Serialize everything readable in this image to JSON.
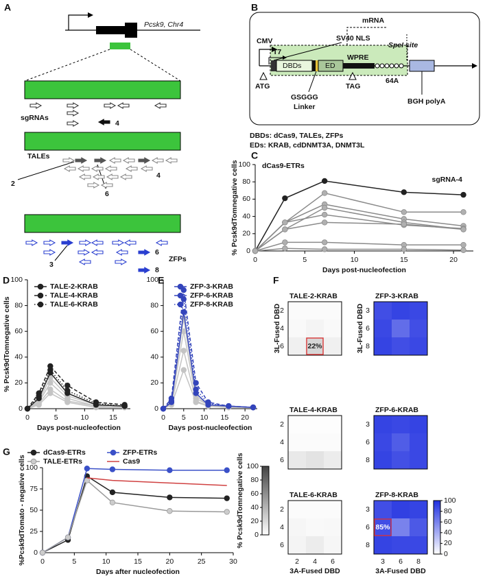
{
  "panel_labels": [
    "A",
    "B",
    "C",
    "D",
    "E",
    "F",
    "G"
  ],
  "diagram_a": {
    "gene_label": "Pcsk9, Chr4",
    "sgrnas_label": "sgRNAs",
    "sgrna_callout": "4",
    "tales_label": "TALEs",
    "tale_callouts": [
      "2",
      "4",
      "6"
    ],
    "zfps_label": "ZFPs",
    "zfp_callouts": [
      "3",
      "6",
      "8"
    ]
  },
  "diagram_b": {
    "cmv": "CMV",
    "t7": "T7",
    "sv40": "SV40 NLS",
    "mrna": "mRNA",
    "spei": "SpeI site",
    "dbds": "DBDs",
    "ed": "ED",
    "wpre": "WPRE",
    "polya": "64A",
    "atg": "ATG",
    "tag": "TAG",
    "linker": [
      "GSGGG",
      "Linker"
    ],
    "bgh": "BGH polyA",
    "notes": [
      "DBDs: dCas9, TALEs, ZFPs",
      "EDs: KRAB, cdDNMT3A, DNMT3L"
    ]
  },
  "chart_data": [
    {
      "type": "line",
      "annotation": "dCas9-ETRs",
      "legend": "direct",
      "xlabel": "Days post-nucleofection",
      "ylabel": "% Pcsk9dTomnegative cells",
      "x": [
        0,
        3,
        7,
        15,
        21
      ],
      "xlim": [
        0,
        22
      ],
      "xticks": [
        0,
        5,
        10,
        15,
        20
      ],
      "ylim": [
        0,
        100
      ],
      "yticks": [
        0,
        20,
        40,
        60,
        80,
        100
      ],
      "series": [
        {
          "name": "sgRNA-4",
          "color": "#222222",
          "values": [
            0,
            61,
            81,
            68,
            65
          ]
        },
        {
          "color": "#8a8a8a",
          "marker_fill": "#b0b0b0",
          "values": [
            0,
            33,
            67,
            45,
            45
          ]
        },
        {
          "color": "#8a8a8a",
          "marker_fill": "#b0b0b0",
          "values": [
            0,
            33,
            54,
            37,
            29
          ]
        },
        {
          "color": "#8a8a8a",
          "marker_fill": "#b0b0b0",
          "values": [
            0,
            25,
            50,
            33,
            25
          ]
        },
        {
          "color": "#8a8a8a",
          "marker_fill": "#b0b0b0",
          "values": [
            0,
            33,
            42,
            30,
            26
          ]
        },
        {
          "color": "#8a8a8a",
          "marker_fill": "#b0b0b0",
          "values": [
            0,
            25,
            33,
            31,
            25
          ]
        },
        {
          "color": "#8a8a8a",
          "marker_fill": "#b0b0b0",
          "values": [
            0,
            10,
            10,
            7,
            7
          ]
        },
        {
          "color": "#8a8a8a",
          "marker_fill": "#b0b0b0",
          "values": [
            0,
            3,
            2,
            2,
            1
          ]
        }
      ]
    },
    {
      "type": "line",
      "legend": "upper left",
      "xlabel": "Days post-nucleofection",
      "ylabel": "% Pcsk9dTomnegative cells",
      "x": [
        0,
        2,
        4,
        7,
        12,
        17
      ],
      "xlim": [
        0,
        18
      ],
      "xticks": [
        0,
        5,
        10,
        15
      ],
      "ylim": [
        0,
        100
      ],
      "yticks": [
        0,
        20,
        40,
        60,
        80,
        100
      ],
      "series": [
        {
          "color": "#c4c4c4",
          "values": [
            0,
            5,
            20,
            8,
            2,
            1
          ]
        },
        {
          "color": "#c4c4c4",
          "values": [
            0,
            4,
            15,
            6,
            2,
            1
          ]
        },
        {
          "color": "#c4c4c4",
          "values": [
            0,
            3,
            12,
            5,
            1,
            1
          ]
        },
        {
          "color": "#c4c4c4",
          "values": [
            0,
            6,
            24,
            10,
            3,
            2
          ]
        },
        {
          "name": "TALE-2-KRAB",
          "color": "#222222",
          "line_style": "solid",
          "values": [
            0,
            8,
            28,
            12,
            3,
            2
          ]
        },
        {
          "name": "TALE-4-KRAB",
          "color": "#222222",
          "line_style": "dashed",
          "values": [
            0,
            12,
            33,
            18,
            5,
            3
          ]
        },
        {
          "name": "TALE-6-KRAB",
          "color": "#222222",
          "line_style": "dotted",
          "values": [
            0,
            10,
            30,
            14,
            4,
            2
          ]
        }
      ]
    },
    {
      "type": "line",
      "legend": "upper right",
      "xlabel": "Days post-nucleofection",
      "x": [
        0,
        2,
        5,
        8,
        11,
        16,
        22
      ],
      "xlim": [
        0,
        23
      ],
      "xticks": [
        0,
        5,
        10,
        15,
        20
      ],
      "ylim": [
        0,
        100
      ],
      "yticks": [
        0,
        20,
        40,
        60,
        80,
        100
      ],
      "series": [
        {
          "color": "#c4c4c4",
          "values": [
            0,
            5,
            60,
            8,
            3,
            1,
            1
          ]
        },
        {
          "color": "#c4c4c4",
          "values": [
            0,
            4,
            45,
            6,
            2,
            1,
            1
          ]
        },
        {
          "color": "#c4c4c4",
          "values": [
            0,
            3,
            30,
            5,
            2,
            1,
            1
          ]
        },
        {
          "color": "#c4c4c4",
          "values": [
            0,
            6,
            70,
            10,
            3,
            2,
            1
          ]
        },
        {
          "name": "ZFP-3-KRAB",
          "color": "#3344bb",
          "line_style": "solid",
          "values": [
            0,
            5,
            75,
            12,
            3,
            2,
            1
          ]
        },
        {
          "name": "ZFP-6-KRAB",
          "color": "#3344bb",
          "line_style": "dashed",
          "values": [
            0,
            8,
            92,
            20,
            5,
            2,
            1
          ]
        },
        {
          "name": "ZFP-8-KRAB",
          "color": "#3344bb",
          "line_style": "dotted",
          "values": [
            0,
            6,
            85,
            15,
            4,
            2,
            1
          ]
        }
      ]
    },
    {
      "type": "line",
      "legend": "top",
      "xlabel": "Days after nucleofection",
      "ylabel": "%Pcsk9dTomato - negative cells",
      "x": [
        0,
        4,
        7,
        11,
        20,
        29
      ],
      "xlim": [
        0,
        30
      ],
      "xticks": [
        0,
        5,
        10,
        15,
        20,
        25,
        30
      ],
      "ylim": [
        0,
        100
      ],
      "yticks": [
        0,
        25,
        50,
        75,
        100
      ],
      "series": [
        {
          "name": "dCas9-ETRs",
          "color": "#222222",
          "values": [
            0,
            15,
            90,
            71,
            65,
            64
          ]
        },
        {
          "name": "ZFP-ETRs",
          "color": "#3a50c8",
          "values": [
            0,
            18,
            99,
            98,
            97,
            97
          ]
        },
        {
          "name": "TALE-ETRs",
          "color": "#999999",
          "marker_fill": "#cccccc",
          "values": [
            0,
            18,
            85,
            59,
            49,
            48
          ]
        },
        {
          "name": "Cas9",
          "color": "#d04040",
          "markers": false,
          "values": [
            null,
            null,
            88,
            85,
            82,
            79
          ]
        }
      ]
    },
    {
      "type": "heatmap",
      "title": "TALE-2-KRAB",
      "ylabel": "3L-Fused DBD",
      "y_categories": [
        "2",
        "4",
        "6"
      ],
      "cmap": [
        "#ffffff",
        "#444444"
      ],
      "zlim": [
        0,
        100
      ],
      "values": [
        [
          2,
          2,
          2
        ],
        [
          3,
          6,
          3
        ],
        [
          8,
          22,
          8
        ]
      ],
      "value_labels": [
        [
          null,
          null,
          null
        ],
        [
          null,
          null,
          null
        ],
        [
          null,
          "22%",
          null
        ]
      ]
    },
    {
      "type": "heatmap",
      "title": "ZFP-3-KRAB",
      "ylabel": "3L-Fused DBD",
      "y_categories": [
        "3",
        "6",
        "8"
      ],
      "cmap": [
        "#ffffff",
        "#1f2fe0"
      ],
      "zlim": [
        0,
        100
      ],
      "values": [
        [
          85,
          90,
          88
        ],
        [
          88,
          70,
          85
        ],
        [
          90,
          85,
          88
        ]
      ]
    },
    {
      "type": "heatmap",
      "title": "TALE-4-KRAB",
      "y_categories": [
        "2",
        "4",
        "6"
      ],
      "cmap": [
        "#ffffff",
        "#444444"
      ],
      "zlim": [
        0,
        100
      ],
      "values": [
        [
          1,
          1,
          1
        ],
        [
          2,
          2,
          2
        ],
        [
          12,
          15,
          10
        ]
      ]
    },
    {
      "type": "heatmap",
      "title": "ZFP-6-KRAB",
      "y_categories": [
        "3",
        "6",
        "8"
      ],
      "cmap": [
        "#ffffff",
        "#1f2fe0"
      ],
      "zlim": [
        0,
        100
      ],
      "values": [
        [
          90,
          88,
          90
        ],
        [
          88,
          78,
          88
        ],
        [
          90,
          84,
          88
        ]
      ]
    },
    {
      "type": "heatmap",
      "title": "TALE-6-KRAB",
      "xlabel": "3A-Fused DBD",
      "x_categories": [
        "2",
        "4",
        "6"
      ],
      "y_categories": [
        "2",
        "4",
        "6"
      ],
      "cmap": [
        "#ffffff",
        "#444444"
      ],
      "zlim": [
        0,
        100
      ],
      "values": [
        [
          2,
          2,
          2
        ],
        [
          5,
          3,
          4
        ],
        [
          6,
          10,
          5
        ]
      ]
    },
    {
      "type": "heatmap",
      "title": "ZFP-8-KRAB",
      "xlabel": "3A-Fused DBD",
      "x_categories": [
        "3",
        "6",
        "8"
      ],
      "y_categories": [
        "3",
        "6",
        "8"
      ],
      "cmap": [
        "#ffffff",
        "#1f2fe0"
      ],
      "zlim": [
        0,
        100
      ],
      "values": [
        [
          85,
          92,
          90
        ],
        [
          85,
          60,
          80
        ],
        [
          90,
          88,
          88
        ]
      ],
      "value_labels": [
        [
          null,
          null,
          null
        ],
        [
          "85%",
          null,
          null
        ],
        [
          null,
          null,
          null
        ]
      ]
    },
    {
      "type": "colorbar",
      "label": "% Pcsk9dTomnegative cells",
      "cmap": [
        "#ffffff",
        "#444444"
      ],
      "lim": [
        0,
        100
      ],
      "ticks": [
        0,
        20,
        40,
        60,
        80,
        100
      ]
    },
    {
      "type": "colorbar",
      "cmap": [
        "#ffffff",
        "#1f2fe0"
      ],
      "lim": [
        0,
        100
      ],
      "ticks": [
        0,
        20,
        40,
        60,
        80,
        100
      ]
    }
  ]
}
